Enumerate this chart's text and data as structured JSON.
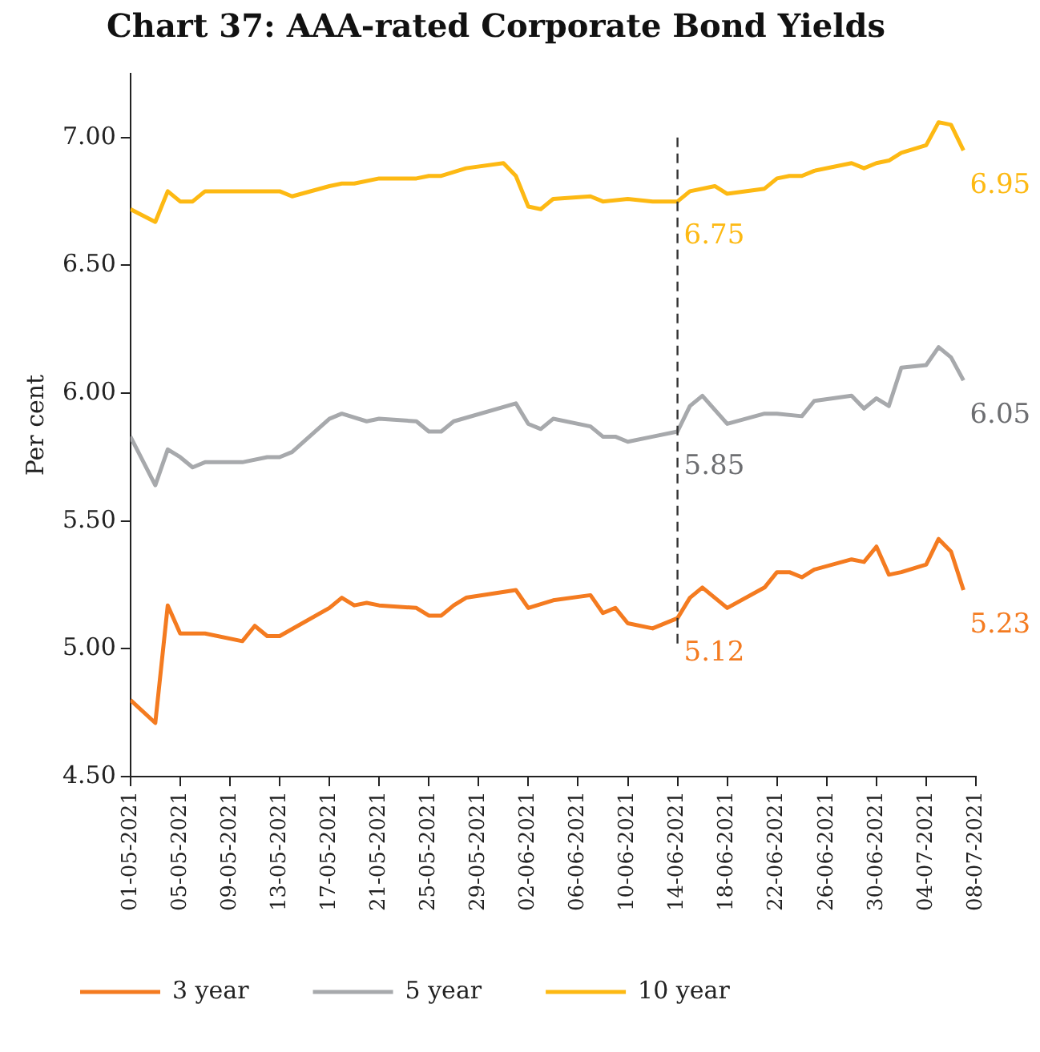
{
  "chart_data": {
    "type": "line",
    "title": "Chart 37: AAA-rated Corporate Bond Yields",
    "ylabel": "Per cent",
    "series": [
      {
        "name": "3 year",
        "color": "#f47b20",
        "x": [
          "2021-05-01",
          "2021-05-03",
          "2021-05-04",
          "2021-05-05",
          "2021-05-07",
          "2021-05-10",
          "2021-05-11",
          "2021-05-12",
          "2021-05-13",
          "2021-05-17",
          "2021-05-18",
          "2021-05-19",
          "2021-05-20",
          "2021-05-21",
          "2021-05-24",
          "2021-05-25",
          "2021-05-26",
          "2021-05-27",
          "2021-05-28",
          "2021-06-01",
          "2021-06-02",
          "2021-06-04",
          "2021-06-07",
          "2021-06-08",
          "2021-06-09",
          "2021-06-10",
          "2021-06-12",
          "2021-06-14",
          "2021-06-15",
          "2021-06-16",
          "2021-06-17",
          "2021-06-18",
          "2021-06-21",
          "2021-06-22",
          "2021-06-23",
          "2021-06-24",
          "2021-06-25",
          "2021-06-28",
          "2021-06-29",
          "2021-06-30",
          "2021-07-01",
          "2021-07-02",
          "2021-07-04",
          "2021-07-05",
          "2021-07-06",
          "2021-07-07"
        ],
        "values": [
          4.8,
          4.71,
          5.17,
          5.06,
          5.06,
          5.03,
          5.09,
          5.05,
          5.05,
          5.16,
          5.2,
          5.17,
          5.18,
          5.17,
          5.16,
          5.13,
          5.13,
          5.17,
          5.2,
          5.23,
          5.16,
          5.19,
          5.21,
          5.14,
          5.16,
          5.1,
          5.08,
          5.12,
          5.2,
          5.24,
          5.2,
          5.16,
          5.24,
          5.3,
          5.3,
          5.28,
          5.31,
          5.35,
          5.34,
          5.4,
          5.29,
          5.3,
          5.33,
          5.43,
          5.38,
          5.23
        ]
      },
      {
        "name": "5 year",
        "color": "#a7a9ac",
        "x": [
          "2021-05-01",
          "2021-05-03",
          "2021-05-04",
          "2021-05-05",
          "2021-05-06",
          "2021-05-07",
          "2021-05-10",
          "2021-05-12",
          "2021-05-13",
          "2021-05-14",
          "2021-05-17",
          "2021-05-18",
          "2021-05-20",
          "2021-05-21",
          "2021-05-24",
          "2021-05-25",
          "2021-05-26",
          "2021-05-27",
          "2021-06-01",
          "2021-06-02",
          "2021-06-03",
          "2021-06-04",
          "2021-06-07",
          "2021-06-08",
          "2021-06-09",
          "2021-06-10",
          "2021-06-12",
          "2021-06-14",
          "2021-06-15",
          "2021-06-16",
          "2021-06-18",
          "2021-06-21",
          "2021-06-22",
          "2021-06-24",
          "2021-06-25",
          "2021-06-28",
          "2021-06-29",
          "2021-06-30",
          "2021-07-01",
          "2021-07-02",
          "2021-07-04",
          "2021-07-05",
          "2021-07-06",
          "2021-07-07"
        ],
        "values": [
          5.83,
          5.64,
          5.78,
          5.75,
          5.71,
          5.73,
          5.73,
          5.75,
          5.75,
          5.77,
          5.9,
          5.92,
          5.89,
          5.9,
          5.89,
          5.85,
          5.85,
          5.89,
          5.96,
          5.88,
          5.86,
          5.9,
          5.87,
          5.83,
          5.83,
          5.81,
          5.83,
          5.85,
          5.95,
          5.99,
          5.88,
          5.92,
          5.92,
          5.91,
          5.97,
          5.99,
          5.94,
          5.98,
          5.95,
          6.1,
          6.11,
          6.18,
          6.14,
          6.05
        ]
      },
      {
        "name": "10 year",
        "color": "#fdb913",
        "x": [
          "2021-05-01",
          "2021-05-03",
          "2021-05-04",
          "2021-05-05",
          "2021-05-06",
          "2021-05-07",
          "2021-05-10",
          "2021-05-13",
          "2021-05-14",
          "2021-05-17",
          "2021-05-18",
          "2021-05-19",
          "2021-05-21",
          "2021-05-24",
          "2021-05-25",
          "2021-05-26",
          "2021-05-28",
          "2021-05-31",
          "2021-06-01",
          "2021-06-02",
          "2021-06-03",
          "2021-06-04",
          "2021-06-07",
          "2021-06-08",
          "2021-06-10",
          "2021-06-12",
          "2021-06-14",
          "2021-06-15",
          "2021-06-17",
          "2021-06-18",
          "2021-06-21",
          "2021-06-22",
          "2021-06-23",
          "2021-06-24",
          "2021-06-25",
          "2021-06-28",
          "2021-06-29",
          "2021-06-30",
          "2021-07-01",
          "2021-07-02",
          "2021-07-04",
          "2021-07-05",
          "2021-07-06",
          "2021-07-07"
        ],
        "values": [
          6.72,
          6.67,
          6.79,
          6.75,
          6.75,
          6.79,
          6.79,
          6.79,
          6.77,
          6.81,
          6.82,
          6.82,
          6.84,
          6.84,
          6.85,
          6.85,
          6.88,
          6.9,
          6.85,
          6.73,
          6.72,
          6.76,
          6.77,
          6.75,
          6.76,
          6.75,
          6.75,
          6.79,
          6.81,
          6.78,
          6.8,
          6.84,
          6.85,
          6.85,
          6.87,
          6.9,
          6.88,
          6.9,
          6.91,
          6.94,
          6.97,
          7.06,
          7.05,
          6.95
        ]
      }
    ],
    "xlim": [
      "2021-05-01",
      "2021-07-08"
    ],
    "xticks": [
      {
        "value": "2021-05-01",
        "label": "01-05-2021"
      },
      {
        "value": "2021-05-05",
        "label": "05-05-2021"
      },
      {
        "value": "2021-05-09",
        "label": "09-05-2021"
      },
      {
        "value": "2021-05-13",
        "label": "13-05-2021"
      },
      {
        "value": "2021-05-17",
        "label": "17-05-2021"
      },
      {
        "value": "2021-05-21",
        "label": "21-05-2021"
      },
      {
        "value": "2021-05-25",
        "label": "25-05-2021"
      },
      {
        "value": "2021-05-29",
        "label": "29-05-2021"
      },
      {
        "value": "2021-06-02",
        "label": "02-06-2021"
      },
      {
        "value": "2021-06-06",
        "label": "06-06-2021"
      },
      {
        "value": "2021-06-10",
        "label": "10-06-2021"
      },
      {
        "value": "2021-06-14",
        "label": "14-06-2021"
      },
      {
        "value": "2021-06-18",
        "label": "18-06-2021"
      },
      {
        "value": "2021-06-22",
        "label": "22-06-2021"
      },
      {
        "value": "2021-06-26",
        "label": "26-06-2021"
      },
      {
        "value": "2021-06-30",
        "label": "30-06-2021"
      },
      {
        "value": "2021-07-04",
        "label": "04-07-2021"
      },
      {
        "value": "2021-07-08",
        "label": "08-07-2021"
      }
    ],
    "ylim": [
      4.5,
      7.25
    ],
    "yticks": [
      {
        "value": 4.5,
        "label": "4.50"
      },
      {
        "value": 5,
        "label": "5.00"
      },
      {
        "value": 5.5,
        "label": "5.50"
      },
      {
        "value": 6,
        "label": "6.00"
      },
      {
        "value": 6.5,
        "label": "6.50"
      },
      {
        "value": 7,
        "label": "7.00"
      }
    ],
    "ref_lines": [
      {
        "axis": "x",
        "value": "2021-06-14",
        "color": "#333333",
        "line_style": "dashed"
      }
    ],
    "annotations": [
      {
        "text": "6.75",
        "x": "2021-06-14",
        "y": 6.75
      },
      {
        "text": "6.95",
        "x": "2021-07-07",
        "y": 6.95
      },
      {
        "text": "5.85",
        "x": "2021-06-14",
        "y": 5.85
      },
      {
        "text": "6.05",
        "x": "2021-07-07",
        "y": 6.05
      },
      {
        "text": "5.12",
        "x": "2021-06-14",
        "y": 5.12
      },
      {
        "text": "5.23",
        "x": "2021-07-07",
        "y": 5.23
      }
    ],
    "grid": false,
    "legend": "bottom",
    "marker": "none",
    "line_style": "solid"
  }
}
